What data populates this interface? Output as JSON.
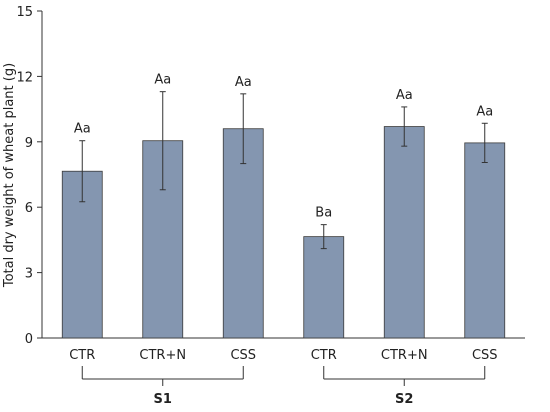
{
  "chart_data": {
    "type": "bar",
    "title": "",
    "xlabel": "",
    "ylabel": "Total dry weight of wheat plant (g)",
    "ylim": [
      0,
      15
    ],
    "yticks": [
      "0",
      "3",
      "6",
      "9",
      "12",
      "15"
    ],
    "ytick_values": [
      0,
      3,
      6,
      9,
      12,
      15
    ],
    "grid": false,
    "legend": "none",
    "bar_color": "#8496b0",
    "bar_edge": "#3a3a3a",
    "categories": [
      "CTR",
      "CTR+N",
      "CSS",
      "CTR",
      "CTR+N",
      "CSS"
    ],
    "groups": [
      {
        "label": "S1",
        "start": 0,
        "end": 2
      },
      {
        "label": "S2",
        "start": 3,
        "end": 5
      }
    ],
    "values": [
      7.65,
      9.05,
      9.6,
      4.65,
      9.7,
      8.95
    ],
    "errors": [
      1.4,
      2.25,
      1.6,
      0.55,
      0.9,
      0.9
    ],
    "annotations": [
      "Aa",
      "Aa",
      "Aa",
      "Ba",
      "Aa",
      "Aa"
    ]
  }
}
